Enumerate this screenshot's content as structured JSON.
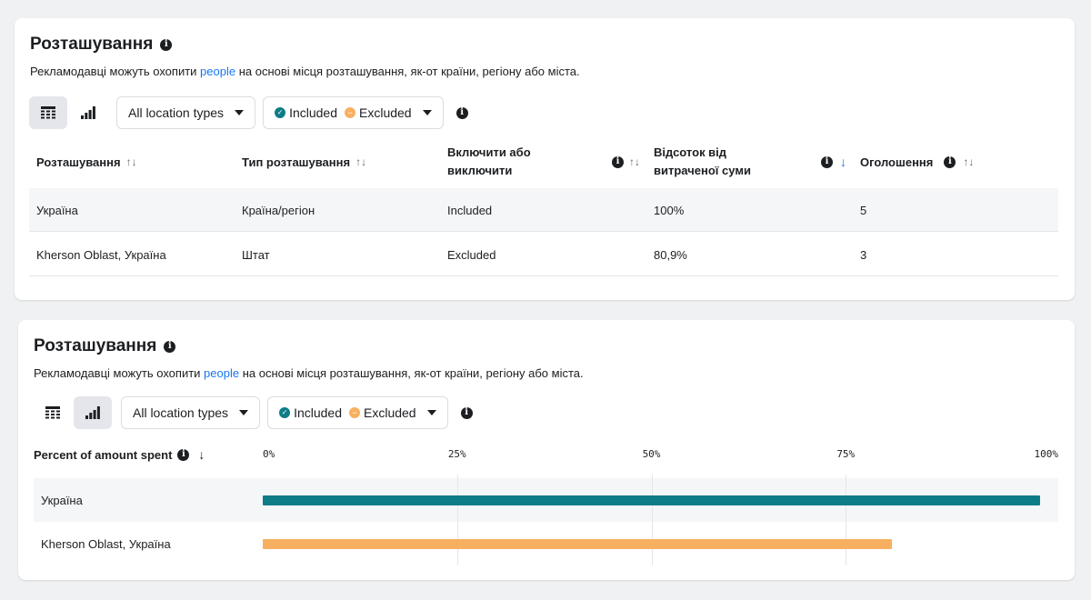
{
  "colors": {
    "included": "#0e7c86",
    "excluded": "#f7b060",
    "link": "#1877f2"
  },
  "panel_table": {
    "title": "Розташування",
    "desc_before": "Рекламодавці можуть охопити ",
    "desc_link": "people",
    "desc_after": " на основі місця розташування, як-от країни, регіону або міста.",
    "view_table_icon": "table-icon",
    "view_chart_icon": "bar-chart-icon",
    "location_dropdown": "All location types",
    "filter_included": "Included",
    "filter_excluded": "Excluded",
    "columns": [
      {
        "line1": "Розташування",
        "line2": ""
      },
      {
        "line1": "Тип розташування",
        "line2": ""
      },
      {
        "line1": "Включити або",
        "line2": "виключити"
      },
      {
        "line1": "Відсоток від",
        "line2": "витраченої суми"
      },
      {
        "line1": "Оголошення",
        "line2": ""
      }
    ],
    "rows": [
      {
        "location": "Україна",
        "type": "Країна/регіон",
        "status": "Included",
        "percent": "100%",
        "ads": "5"
      },
      {
        "location": "Kherson Oblast, Україна",
        "type": "Штат",
        "status": "Excluded",
        "percent": "80,9%",
        "ads": "3"
      }
    ]
  },
  "panel_chart": {
    "title": "Розташування",
    "desc_before": "Рекламодавці можуть охопити ",
    "desc_link": "people",
    "desc_after": " на основі місця розташування, як-от країни, регіону або міста.",
    "location_dropdown": "All location types",
    "filter_included": "Included",
    "filter_excluded": "Excluded",
    "metric_label": "Percent of amount spent",
    "ticks": [
      "0%",
      "25%",
      "50%",
      "75%",
      "100%"
    ]
  },
  "chart_data": {
    "type": "bar",
    "orientation": "horizontal",
    "categories": [
      "Україна",
      "Kherson Oblast, Україна"
    ],
    "values": [
      100,
      80.9
    ],
    "status": [
      "Included",
      "Excluded"
    ],
    "xlim": [
      0,
      100
    ],
    "grid": true
  }
}
